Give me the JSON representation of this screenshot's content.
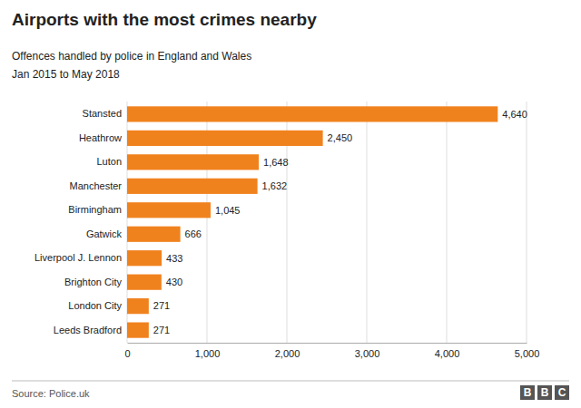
{
  "chart_data": {
    "type": "bar",
    "orientation": "horizontal",
    "title": "Airports with the most crimes nearby",
    "subtitle": [
      "Offences handled by police in England and Wales",
      "Jan 2015 to May 2018"
    ],
    "annotations": [
      "Source: Police.uk",
      "B",
      "B",
      "C"
    ],
    "categories": [
      "Leeds Bradford",
      "London City",
      "Brighton City",
      "Liverpool J. Lennon",
      "Gatwick",
      "Birmingham",
      "Manchester",
      "Luton",
      "Heathrow",
      "Stansted"
    ],
    "values": [
      271,
      271,
      430,
      433,
      666,
      1045,
      1632,
      1648,
      2450,
      4640
    ],
    "value_labels": [
      "271",
      "271",
      "430",
      "433",
      "666",
      "1,045",
      "1,632",
      "1,648",
      "2,450",
      "4,640"
    ],
    "data_labels": true,
    "color": "#f0821e",
    "xlim": [
      0,
      5000
    ],
    "xticks": [
      0,
      {
        "value": 1000,
        "label": "1,000"
      },
      {
        "value": 2000,
        "label": "2,000"
      },
      {
        "value": 3000,
        "label": "3,000"
      },
      {
        "value": 4000,
        "label": "4,000"
      },
      {
        "value": 5000,
        "label": "5,000"
      }
    ],
    "grid": true
  }
}
